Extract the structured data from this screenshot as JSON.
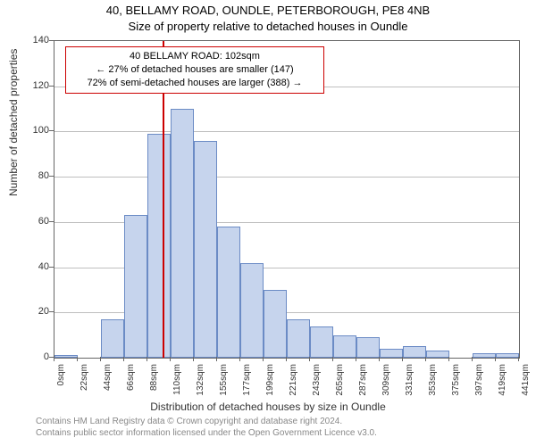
{
  "chart": {
    "type": "histogram",
    "title_main": "40, BELLAMY ROAD, OUNDLE, PETERBOROUGH, PE8 4NB",
    "title_sub": "Size of property relative to detached houses in Oundle",
    "title_fontsize": 13,
    "background_color": "#ffffff",
    "plot_border_color": "#666666",
    "grid_color": "#bfbfbf",
    "bar_fill": "#c6d4ed",
    "bar_border": "#6b8bc5",
    "reference_line_color": "#cc0000",
    "ylabel": "Number of detached properties",
    "xlabel": "Distribution of detached houses by size in Oundle",
    "axis_label_fontsize": 12,
    "tick_fontsize": 11,
    "ylim": [
      0,
      140
    ],
    "ytick_step": 20,
    "yticks": [
      0,
      20,
      40,
      60,
      80,
      100,
      120,
      140
    ],
    "xticks": [
      "0sqm",
      "22sqm",
      "44sqm",
      "66sqm",
      "88sqm",
      "110sqm",
      "132sqm",
      "155sqm",
      "177sqm",
      "199sqm",
      "221sqm",
      "243sqm",
      "265sqm",
      "287sqm",
      "309sqm",
      "331sqm",
      "353sqm",
      "375sqm",
      "397sqm",
      "419sqm",
      "441sqm"
    ],
    "bin_width_sqm": 22,
    "values": [
      1,
      0,
      17,
      63,
      99,
      110,
      96,
      58,
      42,
      30,
      17,
      14,
      10,
      9,
      4,
      5,
      3,
      0,
      2,
      2
    ],
    "reference_value_sqm": 102,
    "callout": {
      "line1": "40 BELLAMY ROAD: 102sqm",
      "line2": "← 27% of detached houses are smaller (147)",
      "line3": "72% of semi-detached houses are larger (388) →"
    },
    "credits_line1": "Contains HM Land Registry data © Crown copyright and database right 2024.",
    "credits_line2": "Contains public sector information licensed under the Open Government Licence v3.0."
  }
}
